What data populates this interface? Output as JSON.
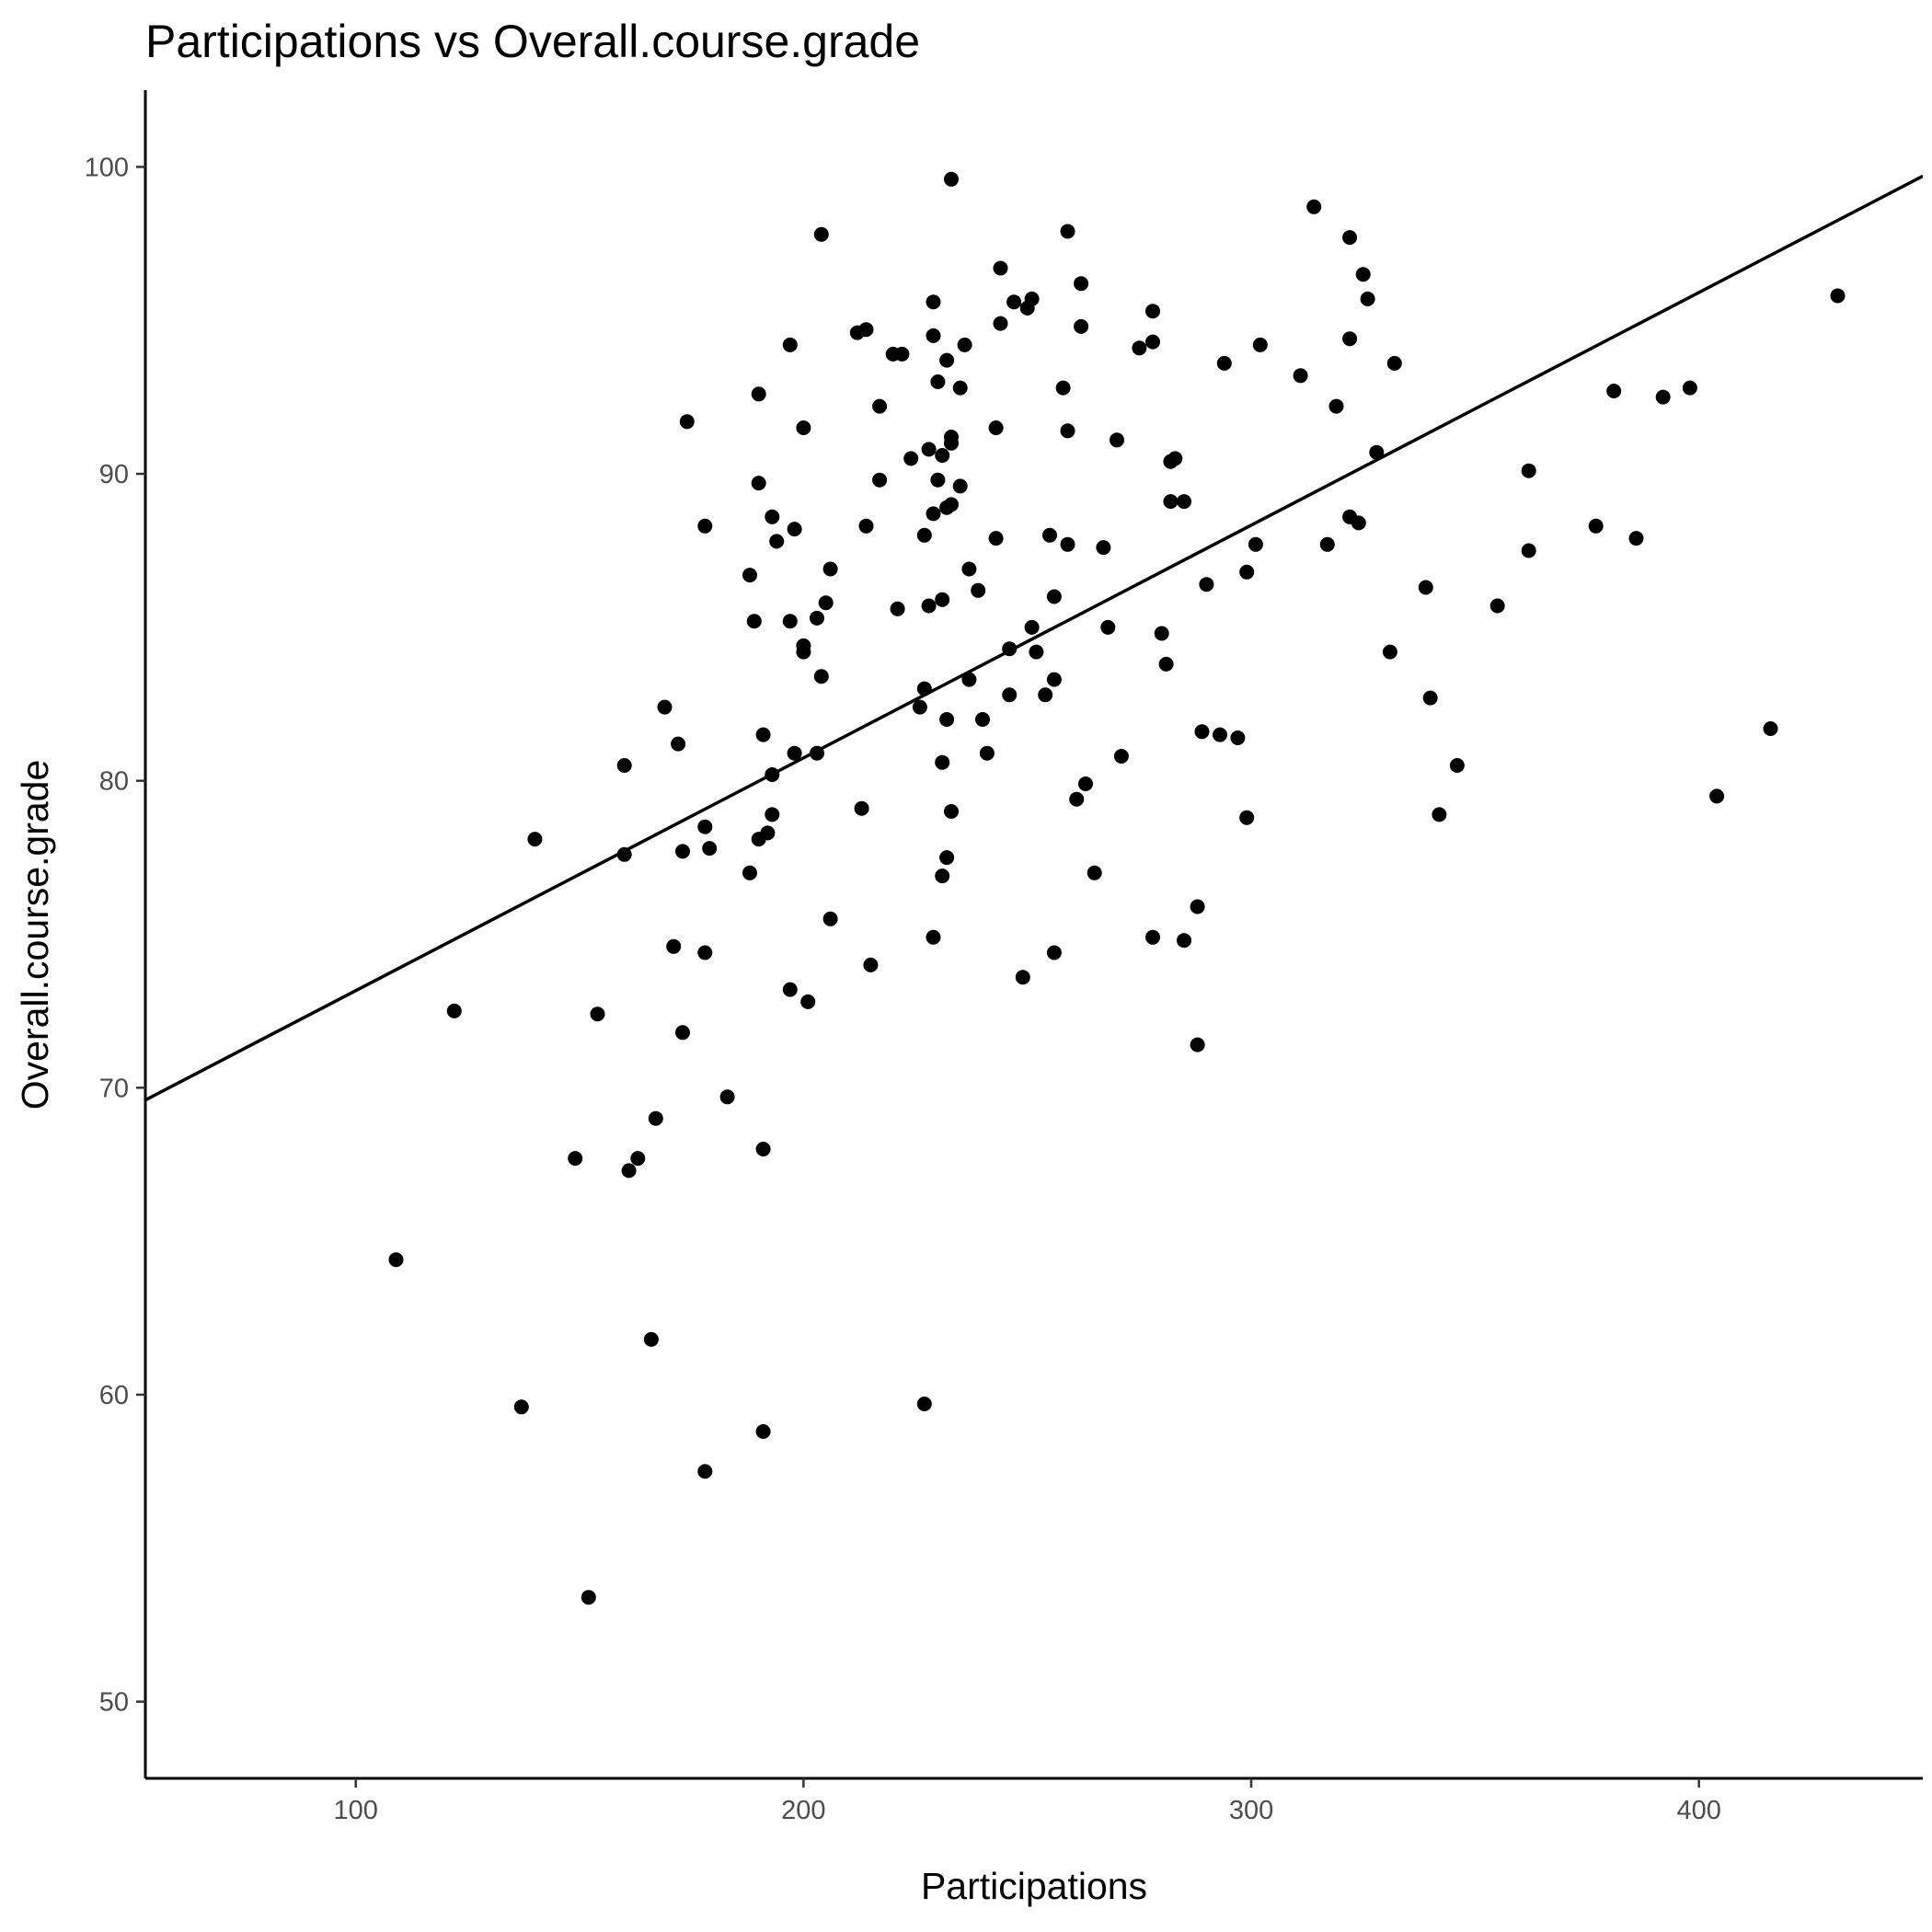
{
  "chart_data": {
    "type": "scatter",
    "title": "Participations vs Overall.course.grade",
    "xlabel": "Participations",
    "ylabel": "Overall.course.grade",
    "xlim": [
      53,
      450
    ],
    "ylim": [
      47.5,
      102.5
    ],
    "xticks": [
      100,
      200,
      300,
      400
    ],
    "yticks": [
      50,
      60,
      70,
      80,
      90,
      100
    ],
    "grid": false,
    "legend": "none",
    "point_color": "#000000",
    "points": [
      [
        233,
        99.6
      ],
      [
        314,
        98.7
      ],
      [
        204,
        97.8
      ],
      [
        259,
        97.9
      ],
      [
        322,
        97.7
      ],
      [
        244,
        96.7
      ],
      [
        325,
        96.5
      ],
      [
        262,
        96.2
      ],
      [
        247,
        95.6
      ],
      [
        251,
        95.7
      ],
      [
        229,
        95.6
      ],
      [
        250,
        95.4
      ],
      [
        326,
        95.7
      ],
      [
        278,
        95.3
      ],
      [
        244,
        94.9
      ],
      [
        262,
        94.8
      ],
      [
        214,
        94.7
      ],
      [
        212,
        94.6
      ],
      [
        229,
        94.5
      ],
      [
        322,
        94.4
      ],
      [
        197,
        94.2
      ],
      [
        236,
        94.2
      ],
      [
        275,
        94.1
      ],
      [
        278,
        94.3
      ],
      [
        302,
        94.2
      ],
      [
        220,
        93.9
      ],
      [
        222,
        93.9
      ],
      [
        232,
        93.7
      ],
      [
        294,
        93.6
      ],
      [
        332,
        93.6
      ],
      [
        311,
        93.2
      ],
      [
        230,
        93.0
      ],
      [
        190,
        92.6
      ],
      [
        235,
        92.8
      ],
      [
        258,
        92.8
      ],
      [
        381,
        92.7
      ],
      [
        392,
        92.5
      ],
      [
        398,
        92.8
      ],
      [
        217,
        92.2
      ],
      [
        319,
        92.2
      ],
      [
        174,
        91.7
      ],
      [
        200,
        91.5
      ],
      [
        243,
        91.5
      ],
      [
        259,
        91.4
      ],
      [
        233,
        91.0
      ],
      [
        233,
        91.2
      ],
      [
        270,
        91.1
      ],
      [
        228,
        90.8
      ],
      [
        231,
        90.6
      ],
      [
        224,
        90.5
      ],
      [
        282,
        90.4
      ],
      [
        283,
        90.5
      ],
      [
        328,
        90.7
      ],
      [
        362,
        90.1
      ],
      [
        190,
        89.7
      ],
      [
        217,
        89.8
      ],
      [
        230,
        89.8
      ],
      [
        235,
        89.6
      ],
      [
        193,
        88.6
      ],
      [
        229,
        88.7
      ],
      [
        232,
        88.9
      ],
      [
        233,
        89.0
      ],
      [
        282,
        89.1
      ],
      [
        285,
        89.1
      ],
      [
        322,
        88.6
      ],
      [
        324,
        88.4
      ],
      [
        178,
        88.3
      ],
      [
        198,
        88.2
      ],
      [
        214,
        88.3
      ],
      [
        377,
        88.3
      ],
      [
        194,
        87.8
      ],
      [
        227,
        88.0
      ],
      [
        243,
        87.9
      ],
      [
        255,
        88.0
      ],
      [
        259,
        87.7
      ],
      [
        267,
        87.6
      ],
      [
        301,
        87.7
      ],
      [
        317,
        87.7
      ],
      [
        386,
        87.9
      ],
      [
        362,
        87.5
      ],
      [
        206,
        86.9
      ],
      [
        237,
        86.9
      ],
      [
        188,
        86.7
      ],
      [
        299,
        86.8
      ],
      [
        290,
        86.4
      ],
      [
        339,
        86.3
      ],
      [
        239,
        86.2
      ],
      [
        205,
        85.8
      ],
      [
        228,
        85.7
      ],
      [
        231,
        85.9
      ],
      [
        221,
        85.6
      ],
      [
        256,
        86.0
      ],
      [
        355,
        85.7
      ],
      [
        189,
        85.2
      ],
      [
        197,
        85.2
      ],
      [
        203,
        85.3
      ],
      [
        251,
        85.0
      ],
      [
        268,
        85.0
      ],
      [
        280,
        84.8
      ],
      [
        200,
        84.4
      ],
      [
        200,
        84.2
      ],
      [
        246,
        84.3
      ],
      [
        252,
        84.2
      ],
      [
        331,
        84.2
      ],
      [
        281,
        83.8
      ],
      [
        204,
        83.4
      ],
      [
        256,
        83.3
      ],
      [
        237,
        83.3
      ],
      [
        227,
        83.0
      ],
      [
        246,
        82.8
      ],
      [
        254,
        82.8
      ],
      [
        340,
        82.7
      ],
      [
        169,
        82.4
      ],
      [
        226,
        82.4
      ],
      [
        232,
        82.0
      ],
      [
        240,
        82.0
      ],
      [
        289,
        81.6
      ],
      [
        293,
        81.5
      ],
      [
        297,
        81.4
      ],
      [
        416,
        81.7
      ],
      [
        191,
        81.5
      ],
      [
        172,
        81.2
      ],
      [
        198,
        80.9
      ],
      [
        203,
        80.9
      ],
      [
        241,
        80.9
      ],
      [
        271,
        80.8
      ],
      [
        231,
        80.6
      ],
      [
        160,
        80.5
      ],
      [
        346,
        80.5
      ],
      [
        193,
        80.2
      ],
      [
        263,
        79.9
      ],
      [
        404,
        79.5
      ],
      [
        261,
        79.4
      ],
      [
        213,
        79.1
      ],
      [
        193,
        78.9
      ],
      [
        233,
        79.0
      ],
      [
        342,
        78.9
      ],
      [
        299,
        78.8
      ],
      [
        178,
        78.5
      ],
      [
        192,
        78.3
      ],
      [
        140,
        78.1
      ],
      [
        190,
        78.1
      ],
      [
        179,
        77.8
      ],
      [
        173,
        77.7
      ],
      [
        160,
        77.6
      ],
      [
        232,
        77.5
      ],
      [
        188,
        77.0
      ],
      [
        231,
        76.9
      ],
      [
        265,
        77.0
      ],
      [
        288,
        75.9
      ],
      [
        206,
        75.5
      ],
      [
        229,
        74.9
      ],
      [
        278,
        74.9
      ],
      [
        285,
        74.8
      ],
      [
        171,
        74.6
      ],
      [
        178,
        74.4
      ],
      [
        256,
        74.4
      ],
      [
        215,
        74.0
      ],
      [
        249,
        73.6
      ],
      [
        197,
        73.2
      ],
      [
        201,
        72.8
      ],
      [
        122,
        72.5
      ],
      [
        154,
        72.4
      ],
      [
        173,
        71.8
      ],
      [
        288,
        71.4
      ],
      [
        183,
        69.7
      ],
      [
        167,
        69.0
      ],
      [
        191,
        68.0
      ],
      [
        149,
        67.7
      ],
      [
        163,
        67.7
      ],
      [
        161,
        67.3
      ],
      [
        109,
        64.4
      ],
      [
        166,
        61.8
      ],
      [
        137,
        59.6
      ],
      [
        227,
        59.7
      ],
      [
        191,
        58.8
      ],
      [
        178,
        57.5
      ],
      [
        152,
        53.4
      ],
      [
        431,
        95.8
      ]
    ],
    "trend_line": {
      "x": [
        53,
        450
      ],
      "y": [
        69.6,
        99.7
      ]
    }
  }
}
